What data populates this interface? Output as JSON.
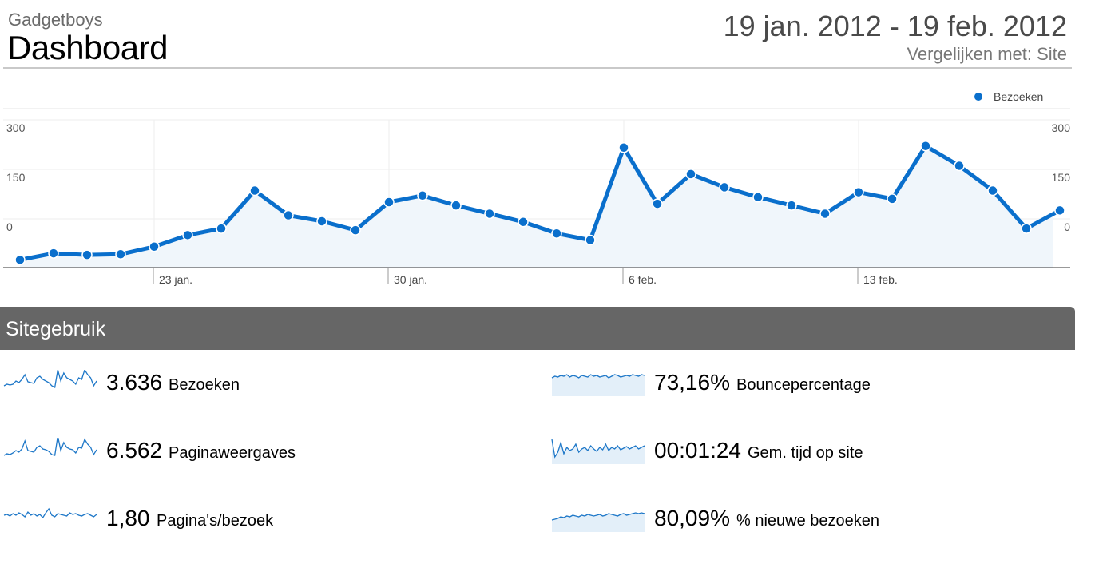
{
  "header": {
    "site_name": "Gadgetboys",
    "title": "Dashboard",
    "date_range": "19 jan. 2012 - 19 feb. 2012",
    "compare": "Vergelijken met: Site"
  },
  "chart_data": {
    "type": "area",
    "legend": "Bezoeken",
    "legend_position": "top-right",
    "color": "#0a6fcc",
    "fill": "#f0f6fb",
    "y_ticks_left": [
      "300",
      "150",
      "0"
    ],
    "y_ticks_right": [
      "300",
      "150",
      "0"
    ],
    "x_ticks": [
      {
        "label": "23 jan.",
        "index": 4
      },
      {
        "label": "30 jan.",
        "index": 11
      },
      {
        "label": "6 feb.",
        "index": 18
      },
      {
        "label": "13 feb.",
        "index": 25
      }
    ],
    "x": [
      "19 jan.",
      "20 jan.",
      "21 jan.",
      "22 jan.",
      "23 jan.",
      "24 jan.",
      "25 jan.",
      "26 jan.",
      "27 jan.",
      "28 jan.",
      "29 jan.",
      "30 jan.",
      "31 jan.",
      "1 feb.",
      "2 feb.",
      "3 feb.",
      "4 feb.",
      "5 feb.",
      "6 feb.",
      "7 feb.",
      "8 feb.",
      "9 feb.",
      "10 feb.",
      "11 feb.",
      "12 feb.",
      "13 feb.",
      "14 feb.",
      "15 feb.",
      "16 feb.",
      "17 feb.",
      "18 feb.",
      "19 feb."
    ],
    "values": [
      -100,
      -80,
      -85,
      -83,
      -60,
      -25,
      -5,
      110,
      35,
      17,
      -10,
      75,
      95,
      65,
      40,
      15,
      -20,
      -40,
      240,
      70,
      160,
      120,
      90,
      65,
      40,
      105,
      85,
      245,
      185,
      110,
      -5,
      50
    ],
    "ylim": [
      -120,
      300
    ],
    "grid": true
  },
  "section": {
    "title": "Sitegebruik"
  },
  "metrics": [
    {
      "value": "3.636",
      "label": "Bezoeken",
      "spark": [
        12,
        14,
        13,
        14,
        18,
        16,
        20,
        26,
        17,
        16,
        15,
        22,
        24,
        20,
        18,
        16,
        12,
        10,
        32,
        18,
        28,
        22,
        20,
        18,
        14,
        22,
        20,
        32,
        26,
        22,
        12,
        18
      ],
      "fill": false
    },
    {
      "value": "6.562",
      "label": "Paginaweergaves",
      "spark": [
        10,
        12,
        11,
        13,
        16,
        14,
        18,
        28,
        16,
        15,
        14,
        20,
        22,
        18,
        17,
        15,
        11,
        10,
        34,
        16,
        26,
        20,
        18,
        17,
        13,
        20,
        19,
        30,
        24,
        20,
        11,
        17
      ],
      "fill": false
    },
    {
      "value": "1,80",
      "label": "Pagina's/bezoek",
      "spark": [
        20,
        21,
        19,
        22,
        20,
        23,
        21,
        18,
        24,
        20,
        22,
        19,
        21,
        17,
        23,
        28,
        20,
        18,
        22,
        21,
        20,
        19,
        23,
        21,
        22,
        20,
        19,
        21,
        22,
        20,
        18,
        21
      ],
      "fill": false
    },
    {
      "value": "73,16%",
      "label": "Bouncepercentage",
      "spark": [
        22,
        24,
        23,
        25,
        24,
        26,
        23,
        25,
        24,
        22,
        25,
        24,
        23,
        26,
        24,
        25,
        23,
        24,
        25,
        22,
        24,
        26,
        25,
        23,
        24,
        25,
        24,
        26,
        25,
        24,
        26,
        25
      ],
      "fill": true
    },
    {
      "value": "00:01:24",
      "label": "Gem. tijd op site",
      "spark": [
        30,
        8,
        14,
        26,
        12,
        20,
        16,
        18,
        24,
        14,
        18,
        20,
        16,
        22,
        18,
        15,
        20,
        17,
        24,
        16,
        20,
        18,
        22,
        17,
        19,
        21,
        18,
        20,
        22,
        18,
        20,
        22
      ],
      "fill": true
    },
    {
      "value": "80,09%",
      "label": "% nieuwe bezoeken",
      "spark": [
        14,
        15,
        16,
        18,
        17,
        19,
        18,
        20,
        19,
        18,
        20,
        19,
        21,
        20,
        19,
        20,
        21,
        19,
        20,
        22,
        21,
        20,
        19,
        21,
        22,
        20,
        21,
        22,
        23,
        22,
        23,
        22
      ],
      "fill": true
    }
  ]
}
